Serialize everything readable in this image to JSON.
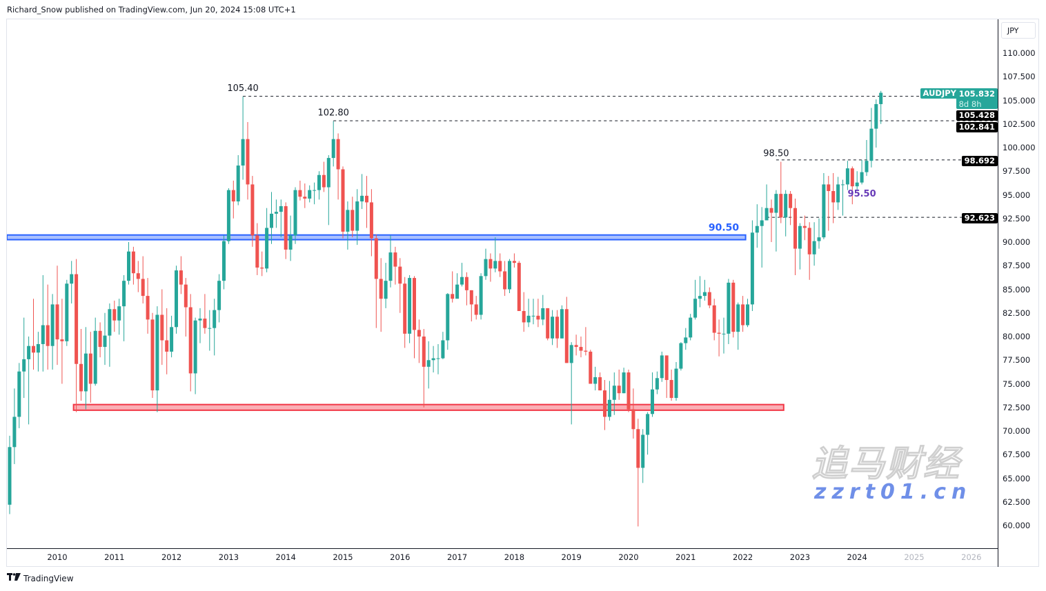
{
  "header": {
    "published": "Richard_Snow published on TradingView.com, Jun 20, 2024 15:08 UTC+1"
  },
  "footer": {
    "brand": "TradingView",
    "logo": "TV"
  },
  "watermark": {
    "cn": "追马财经",
    "url": "zzrt01.cn"
  },
  "axis": {
    "currency_button": "JPY"
  },
  "colors": {
    "up": "#26a69a",
    "down": "#ef5350",
    "blue_zone": "#2962ff",
    "red_zone": "#f23645",
    "purple": "#673ab7",
    "label_bg": "#000000"
  },
  "price_labels": {
    "symbol": "AUDJPY",
    "last": "105.832",
    "countdown": "8d 8h",
    "levels": [
      "105.428",
      "102.841",
      "98.692",
      "92.623"
    ]
  },
  "chart_data": {
    "type": "candlestick",
    "symbol": "AUDJPY",
    "interval": "monthly",
    "start_month": "2009-03",
    "first_open": 62.2,
    "ylim": [
      58.5,
      114
    ],
    "y_ticks": [
      "110.000",
      "107.500",
      "105.000",
      "102.500",
      "100.000",
      "97.500",
      "95.000",
      "92.500",
      "90.000",
      "87.500",
      "85.000",
      "82.500",
      "80.000",
      "77.500",
      "75.000",
      "72.500",
      "70.000",
      "67.500",
      "65.000",
      "62.500",
      "60.000"
    ],
    "x_ticks": [
      "2010",
      "2011",
      "2012",
      "2013",
      "2014",
      "2015",
      "2016",
      "2017",
      "2018",
      "2019",
      "2020",
      "2021",
      "2022",
      "2023",
      "2024",
      "2025",
      "2026"
    ],
    "grid": false,
    "close": [
      68.3,
      71.5,
      76.3,
      77.6,
      79.0,
      78.3,
      79.2,
      81.2,
      79.0,
      83.4,
      79.7,
      79.5,
      85.6,
      86.6,
      77.1,
      74.2,
      78.2,
      75.0,
      80.6,
      78.9,
      80.1,
      82.9,
      81.7,
      83.2,
      85.9,
      89.0,
      86.7,
      86.1,
      84.3,
      81.8,
      74.3,
      82.3,
      79.6,
      78.4,
      81.0,
      87.0,
      85.5,
      83.1,
      76.1,
      81.7,
      81.9,
      80.9,
      80.9,
      82.8,
      85.9,
      90.1,
      95.5,
      94.3,
      98.1,
      100.9,
      96.1,
      90.7,
      87.3,
      87.2,
      91.5,
      93.0,
      93.2,
      93.8,
      89.2,
      90.7,
      95.5,
      94.8,
      94.6,
      95.5,
      95.5,
      97.1,
      95.8,
      98.9,
      100.9,
      97.7,
      91.1,
      93.4,
      91.2,
      94.3,
      94.9,
      94.2,
      90.4,
      86.1,
      84.0,
      85.9,
      88.9,
      87.4,
      85.6,
      80.3,
      86.2,
      80.7,
      80.0,
      76.8,
      77.5,
      77.7,
      77.7,
      79.6,
      84.5,
      84.0,
      85.5,
      86.3,
      84.9,
      83.4,
      82.3,
      86.4,
      88.2,
      87.2,
      88.0,
      86.9,
      85.0,
      88.0,
      87.8,
      82.7,
      81.5,
      82.2,
      82.2,
      81.8,
      83.0,
      79.8,
      82.1,
      79.8,
      82.9,
      77.2,
      79.1,
      78.9,
      78.5,
      78.4,
      75.0,
      75.7,
      74.3,
      71.5,
      73.3,
      74.8,
      74.0,
      76.2,
      72.3,
      70.2,
      66.1,
      69.6,
      71.8,
      74.4,
      75.6,
      78.0,
      75.4,
      73.5,
      76.6,
      79.3,
      79.9,
      82.0,
      84.0,
      84.3,
      84.7,
      83.3,
      80.4,
      80.3,
      80.3,
      85.7,
      80.5,
      83.4,
      81.2,
      83.4,
      91.0,
      91.7,
      92.3,
      93.6,
      93.1,
      95.1,
      92.6,
      95.1,
      93.6,
      89.3,
      91.7,
      91.5,
      88.7,
      90.1,
      90.5,
      96.1,
      95.4,
      94.2,
      96.1,
      96.1,
      97.8,
      95.9,
      96.3,
      97.4,
      98.6,
      102.0,
      104.6,
      105.8
    ],
    "high": [
      69.5,
      74.5,
      77.2,
      82.0,
      80.0,
      84.0,
      80.5,
      86.5,
      85.5,
      84.5,
      87.5,
      84.0,
      86.0,
      88.0,
      88.2,
      80.8,
      81.0,
      80.5,
      82.0,
      81.5,
      82.5,
      83.5,
      83.8,
      84.0,
      86.5,
      90.0,
      89.5,
      88.0,
      88.5,
      86.2,
      82.5,
      83.2,
      85.0,
      83.0,
      82.2,
      87.5,
      88.5,
      86.2,
      84.5,
      82.0,
      83.0,
      84.5,
      82.8,
      84.0,
      86.6,
      90.7,
      95.7,
      96.5,
      99.2,
      105.4,
      102.7,
      97.0,
      92.0,
      89.0,
      93.6,
      95.3,
      94.5,
      94.5,
      94.2,
      92.8,
      95.8,
      96.5,
      96.2,
      96.0,
      96.3,
      97.5,
      98.5,
      99.2,
      102.8,
      101.5,
      98.0,
      94.3,
      94.8,
      95.6,
      97.2,
      97.0,
      95.6,
      90.8,
      88.3,
      87.8,
      90.7,
      89.5,
      88.3,
      86.3,
      86.5,
      86.4,
      81.8,
      80.8,
      79.5,
      79.0,
      79.2,
      80.5,
      84.6,
      86.9,
      86.7,
      87.8,
      86.8,
      84.9,
      84.3,
      86.7,
      89.3,
      88.8,
      90.5,
      88.8,
      88.0,
      88.2,
      88.8,
      88.0,
      84.7,
      84.0,
      84.0,
      84.0,
      84.4,
      83.0,
      82.8,
      82.8,
      83.3,
      84.2,
      79.4,
      80.2,
      80.0,
      81.0,
      78.6,
      76.8,
      76.2,
      75.4,
      75.3,
      76.2,
      76.5,
      76.7,
      76.5,
      74.5,
      71.3,
      70.2,
      72.0,
      76.2,
      76.3,
      78.4,
      78.0,
      76.5,
      77.3,
      79.4,
      80.9,
      82.4,
      86.0,
      86.4,
      86.0,
      85.2,
      84.0,
      81.8,
      82.0,
      86.1,
      86.0,
      83.6,
      84.3,
      84.0,
      92.3,
      94.0,
      93.7,
      96.1,
      94.5,
      95.5,
      98.5,
      95.5,
      95.4,
      94.6,
      92.0,
      92.8,
      92.1,
      92.1,
      92.5,
      97.3,
      97.0,
      97.3,
      96.9,
      96.6,
      98.6,
      98.0,
      97.5,
      98.7,
      100.8,
      104.2,
      105.1,
      106.0
    ],
    "low": [
      61.2,
      66.5,
      70.3,
      73.5,
      70.7,
      76.5,
      76.3,
      76.3,
      76.5,
      76.5,
      77.0,
      75.0,
      79.0,
      83.5,
      72.0,
      73.2,
      72.3,
      73.0,
      74.8,
      77.8,
      77.0,
      76.8,
      80.5,
      80.2,
      79.5,
      85.5,
      85.5,
      84.7,
      83.5,
      80.3,
      73.5,
      72.0,
      77.0,
      76.0,
      77.8,
      80.3,
      84.5,
      80.0,
      74.2,
      73.9,
      79.3,
      80.3,
      78.5,
      78.0,
      81.5,
      85.0,
      89.8,
      92.5,
      93.9,
      96.6,
      94.5,
      89.5,
      86.5,
      86.4,
      86.8,
      89.8,
      91.5,
      90.5,
      88.2,
      88.0,
      89.8,
      94.4,
      93.6,
      94.2,
      94.0,
      94.5,
      95.3,
      91.8,
      98.0,
      94.5,
      90.4,
      89.2,
      90.5,
      89.7,
      93.5,
      91.5,
      88.5,
      80.9,
      80.5,
      83.0,
      85.2,
      85.5,
      82.5,
      78.8,
      79.3,
      77.7,
      77.2,
      72.5,
      74.5,
      76.2,
      76.0,
      77.6,
      78.6,
      83.6,
      84.7,
      85.3,
      83.3,
      81.6,
      81.8,
      81.8,
      86.0,
      85.8,
      86.8,
      86.3,
      84.3,
      84.6,
      87.3,
      82.7,
      80.5,
      81.0,
      81.3,
      81.0,
      81.2,
      79.6,
      79.1,
      78.8,
      79.8,
      77.2,
      70.7,
      78.0,
      77.8,
      78.0,
      75.0,
      74.3,
      74.3,
      70.1,
      71.1,
      71.7,
      73.3,
      74.0,
      72.0,
      69.2,
      59.9,
      64.5,
      67.5,
      71.5,
      73.9,
      75.2,
      73.5,
      73.2,
      73.2,
      76.4,
      78.6,
      79.6,
      81.8,
      83.1,
      83.8,
      83.0,
      79.6,
      77.9,
      78.2,
      79.2,
      79.9,
      78.6,
      80.5,
      81.0,
      82.7,
      89.4,
      87.3,
      93.1,
      90.0,
      89.0,
      92.0,
      90.6,
      91.8,
      86.5,
      87.1,
      90.2,
      86.0,
      87.5,
      89.3,
      90.3,
      91.2,
      92.0,
      93.4,
      92.8,
      95.5,
      94.0,
      95.5,
      96.1,
      97.0,
      97.9,
      100.0,
      102.5
    ],
    "zones": [
      {
        "name": "resistance-zone",
        "from": "2009-03",
        "to": "2022-01",
        "low": 90.25,
        "high": 90.75,
        "color": "#2962ff"
      },
      {
        "name": "support-zone",
        "from": "2010-05",
        "to": "2022-09",
        "low": 72.2,
        "high": 72.8,
        "color": "#f23645"
      }
    ],
    "levels": [
      {
        "price": 105.428,
        "from": "2013-04"
      },
      {
        "price": 102.841,
        "from": "2014-11"
      },
      {
        "price": 98.692,
        "from": "2022-08"
      },
      {
        "price": 92.623,
        "from": "2022-06"
      }
    ],
    "annotations": [
      {
        "text": "105.40",
        "month": "2013-04",
        "price": 106.0,
        "color": "#131722"
      },
      {
        "text": "102.80",
        "month": "2014-11",
        "price": 103.4,
        "color": "#131722"
      },
      {
        "text": "98.50",
        "month": "2022-08",
        "price": 99.1,
        "color": "#131722"
      },
      {
        "text": "95.50",
        "month": "2024-02",
        "price": 94.8,
        "color": "#673ab7"
      },
      {
        "text": "90.50",
        "month": "2021-09",
        "price": 91.2,
        "color": "#2962ff"
      }
    ]
  }
}
